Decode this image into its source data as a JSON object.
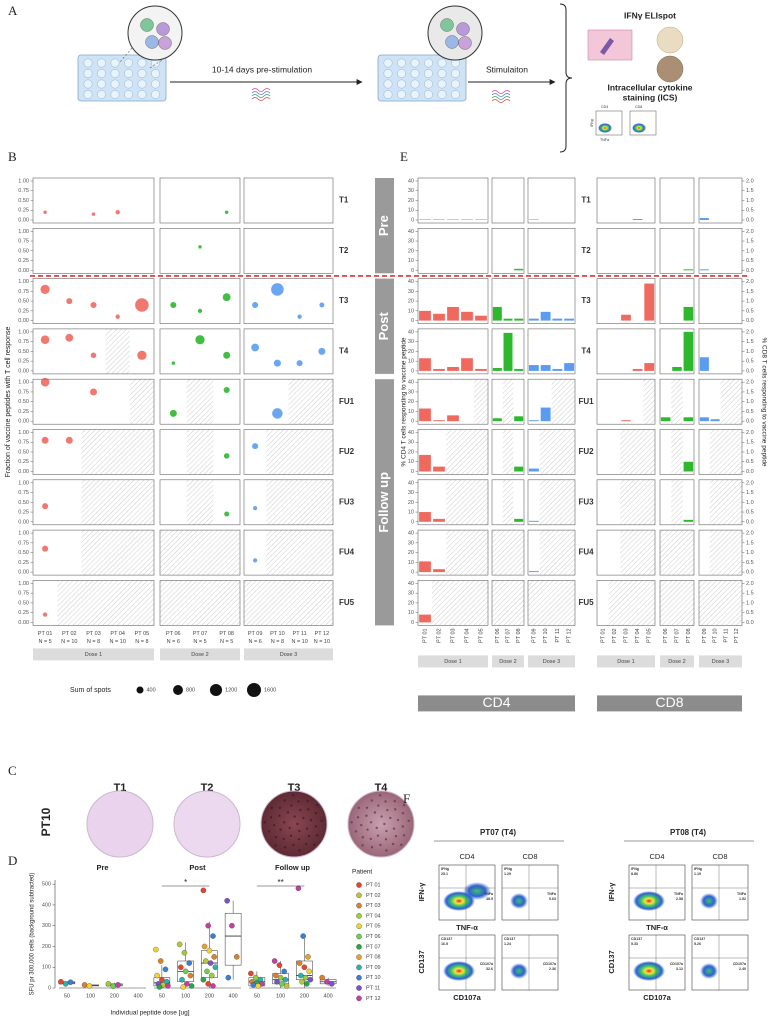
{
  "rows": [
    "T1",
    "T2",
    "T3",
    "T4",
    "FU1",
    "FU2",
    "FU3",
    "FU4",
    "FU5"
  ],
  "phases": [
    "Pre",
    "Post",
    "Follow up"
  ],
  "doses": [
    {
      "label": "Dose 1",
      "color": "#f0695f",
      "patients": [
        {
          "name": "PT 01",
          "n": "N = 5"
        },
        {
          "name": "PT 02",
          "n": "N = 10"
        },
        {
          "name": "PT 03",
          "n": "N = 8"
        },
        {
          "name": "PT 04",
          "n": "N = 10"
        },
        {
          "name": "PT 05",
          "n": "N = 8"
        }
      ]
    },
    {
      "label": "Dose 2",
      "color": "#2db82d",
      "patients": [
        {
          "name": "PT 06",
          "n": "N = 6"
        },
        {
          "name": "PT 07",
          "n": "N = 5"
        },
        {
          "name": "PT 08",
          "n": "N = 5"
        }
      ]
    },
    {
      "label": "Dose 3",
      "color": "#5b9cf2",
      "patients": [
        {
          "name": "PT 09",
          "n": "N = 6"
        },
        {
          "name": "PT 10",
          "n": "N = 8"
        },
        {
          "name": "PT 11",
          "n": "N = 10"
        },
        {
          "name": "PT 12",
          "n": "N = 10"
        }
      ]
    }
  ],
  "panel_a": {
    "letter": "A",
    "step1": "10-14 days pre-stimulation",
    "step2": "Stimulaiton",
    "readout1": "IFNγ ELIspot",
    "readout2": [
      "Intracellular cytokine",
      "staining (ICS)"
    ],
    "ics_labels": [
      "CD4",
      "CD8",
      "IFNg",
      "TNFa"
    ]
  },
  "panel_b": {
    "letter": "B",
    "ylabel": "Fraction of vaccine peptides with T cell response",
    "ylim": [
      0,
      1
    ],
    "yticks": [
      {
        "value": 0,
        "label": "0.00"
      },
      {
        "value": 0.25,
        "label": "0.25"
      },
      {
        "value": 0.5,
        "label": "0.50"
      },
      {
        "value": 0.75,
        "label": "0.75"
      },
      {
        "value": 1,
        "label": "1.00"
      }
    ],
    "fraction": [
      [
        0.2,
        0,
        0.15,
        0.2,
        0,
        0,
        0,
        0.2,
        0,
        0,
        0,
        0
      ],
      [
        0,
        0,
        0,
        0,
        0,
        0,
        0.6,
        0,
        0,
        0,
        0,
        0
      ],
      [
        0.8,
        0.5,
        0.4,
        0.1,
        0.4,
        0.4,
        0.25,
        0.6,
        0.4,
        0.8,
        0.1,
        0.4
      ],
      [
        0.8,
        0.85,
        0.4,
        null,
        0.4,
        0.2,
        0.8,
        0.4,
        0.6,
        0.2,
        0.2,
        0.5
      ],
      [
        1,
        0,
        0.75,
        0,
        null,
        0.2,
        null,
        0.8,
        0,
        0.2,
        null,
        null
      ],
      [
        0.8,
        0.8,
        null,
        null,
        null,
        0,
        null,
        0.4,
        0.65,
        null,
        null,
        null
      ],
      [
        0.4,
        0,
        null,
        null,
        null,
        0,
        null,
        0.2,
        0.35,
        null,
        null,
        null
      ],
      [
        0.6,
        0,
        null,
        null,
        null,
        null,
        null,
        null,
        0.3,
        null,
        null,
        null
      ],
      [
        0.2,
        null,
        null,
        null,
        null,
        null,
        null,
        null,
        null,
        null,
        null,
        null
      ]
    ],
    "spots": [
      [
        100,
        0,
        100,
        150,
        0,
        0,
        0,
        100,
        0,
        0,
        0,
        0
      ],
      [
        0,
        0,
        0,
        0,
        0,
        0,
        100,
        0,
        0,
        0,
        0,
        0
      ],
      [
        700,
        300,
        300,
        150,
        1500,
        300,
        150,
        500,
        300,
        1300,
        150,
        200
      ],
      [
        600,
        500,
        250,
        null,
        700,
        100,
        700,
        400,
        500,
        400,
        300,
        400
      ],
      [
        600,
        0,
        400,
        0,
        null,
        400,
        null,
        300,
        0,
        900,
        null,
        null
      ],
      [
        400,
        400,
        null,
        null,
        null,
        0,
        null,
        250,
        300,
        null,
        null,
        null
      ],
      [
        300,
        0,
        null,
        null,
        null,
        0,
        null,
        200,
        150,
        null,
        null,
        null
      ],
      [
        300,
        0,
        null,
        null,
        null,
        null,
        null,
        null,
        150,
        null,
        null,
        null
      ],
      [
        150,
        null,
        null,
        null,
        null,
        null,
        null,
        null,
        null,
        null,
        null,
        null
      ]
    ],
    "legend_title": "Sum of spots",
    "legend_sizes": [
      400,
      800,
      1200,
      1600
    ]
  },
  "panel_e": {
    "letter": "E",
    "ylabel": "% CD4 T cells responding to vaccine peptide",
    "y2label": "% CD8 T cells responding to vaccine peptide",
    "ylim": [
      0,
      40
    ],
    "yticks": [
      0,
      10,
      20,
      30,
      40
    ],
    "y2lim": [
      0,
      2
    ],
    "y2ticks": [
      {
        "value": 0,
        "label": "0.0"
      },
      0.5,
      {
        "value": 1,
        "label": "1.0"
      },
      1.5,
      {
        "value": 2,
        "label": "2.0"
      }
    ],
    "cd4_title": "CD4",
    "cd8_title": "CD8",
    "cd4": [
      [
        0.5,
        0.5,
        0.5,
        0.5,
        0.5,
        0,
        0,
        0,
        0.5,
        0,
        0,
        0
      ],
      [
        0,
        0,
        0,
        0,
        0,
        0,
        0,
        1.5,
        0,
        0,
        0,
        0
      ],
      [
        10,
        7,
        14,
        9,
        5,
        14,
        2,
        2,
        2,
        9,
        2,
        2
      ],
      [
        13,
        2,
        4,
        13,
        2,
        3,
        39,
        2,
        6,
        6,
        2,
        8
      ],
      [
        13,
        1,
        6,
        0,
        null,
        3,
        null,
        5,
        1,
        14,
        null,
        null
      ],
      [
        17,
        5,
        null,
        null,
        null,
        0,
        null,
        5,
        3,
        null,
        null,
        null
      ],
      [
        10,
        3,
        null,
        null,
        null,
        0,
        null,
        3,
        1,
        null,
        null,
        null
      ],
      [
        11,
        3,
        null,
        null,
        null,
        null,
        null,
        null,
        1,
        null,
        null,
        null
      ],
      [
        8,
        null,
        null,
        null,
        null,
        null,
        null,
        null,
        null,
        null,
        null,
        null
      ]
    ],
    "cd8": [
      [
        0,
        0,
        0,
        0.05,
        0,
        0,
        0,
        0,
        0.1,
        0,
        0,
        0
      ],
      [
        0,
        0,
        0,
        0,
        0,
        0,
        0,
        0.05,
        0.05,
        0,
        0,
        0
      ],
      [
        0,
        0,
        0.3,
        0,
        1.9,
        0,
        0,
        0.7,
        0,
        0,
        0,
        0
      ],
      [
        0,
        0,
        0,
        0.1,
        0.4,
        0,
        0.2,
        2,
        0.7,
        0,
        0,
        0
      ],
      [
        0,
        0,
        0.05,
        0,
        null,
        0.2,
        null,
        0.2,
        0.2,
        0.1,
        null,
        null
      ],
      [
        0,
        0,
        null,
        null,
        null,
        0,
        null,
        0.5,
        0,
        null,
        null,
        null
      ],
      [
        0,
        0,
        null,
        null,
        null,
        0,
        null,
        0.1,
        0,
        null,
        null,
        null
      ],
      [
        0,
        0,
        null,
        null,
        null,
        null,
        null,
        null,
        0,
        null,
        null,
        null
      ],
      [
        0,
        null,
        null,
        null,
        null,
        null,
        null,
        null,
        null,
        null,
        null,
        null
      ]
    ]
  },
  "panel_c": {
    "letter": "C",
    "sample": "PT10",
    "labels": [
      "T1",
      "T2",
      "T3",
      "T4"
    ]
  },
  "panel_d": {
    "letter": "D",
    "ylabel": "SFU pr 300,000 cells (background subtracted)",
    "xlabel": "Individual peptide dose [ug]",
    "ylim": [
      0,
      520
    ],
    "yticks": [
      0,
      100,
      200,
      300,
      400,
      500
    ],
    "categories": [
      "50",
      "100",
      "200",
      "400"
    ],
    "groups": [
      {
        "title": "Pre"
      },
      {
        "title": "Post",
        "significance": "*"
      },
      {
        "title": "Follow up",
        "significance": "**"
      }
    ],
    "cells": [
      {
        "box": [
          15,
          20,
          25,
          30,
          32
        ],
        "values": [
          30,
          20,
          28
        ],
        "colors": [
          "#e6452e",
          "#2ab3a6",
          "#3a7fd5"
        ]
      },
      {
        "box": [
          8,
          10,
          12,
          15,
          18
        ],
        "values": [
          15,
          10
        ],
        "colors": [
          "#d9822b",
          "#f2d230"
        ]
      },
      {
        "box": [
          5,
          10,
          15,
          20,
          25
        ],
        "values": [
          20,
          8,
          15
        ],
        "colors": [
          "#9ccc3c",
          "#6ccf4f",
          "#c43fa3"
        ]
      },
      {
        "box": null,
        "values": [],
        "colors": []
      },
      {
        "box": [
          0,
          10,
          25,
          50,
          110
        ],
        "values": [
          185,
          130,
          90,
          60,
          40,
          30,
          20,
          15,
          10,
          5
        ],
        "colors": [
          "#f2d230",
          "#d9822b",
          "#3a7fd5",
          "#f2d230",
          "#e6452e",
          "#2ab3a6",
          "#7b52c9",
          "#b7c73a",
          "#c43fa3",
          "#27a745"
        ]
      },
      {
        "box": [
          0,
          30,
          80,
          130,
          220
        ],
        "values": [
          210,
          170,
          120,
          100,
          80,
          60,
          40,
          20,
          10,
          5
        ],
        "colors": [
          "#b7c73a",
          "#9ccc3c",
          "#3a7fd5",
          "#e6452e",
          "#6ccf4f",
          "#d9822b",
          "#2ab3a6",
          "#c43fa3",
          "#27a745",
          "#f2d230"
        ]
      },
      {
        "box": [
          0,
          50,
          120,
          180,
          320
        ],
        "values": [
          470,
          300,
          250,
          200,
          180,
          150,
          130,
          120,
          100,
          80,
          60,
          40,
          20,
          10
        ],
        "colors": [
          "#e6452e",
          "#c43fa3",
          "#3a7fd5",
          "#e8a030",
          "#f2d230",
          "#d9822b",
          "#b7c73a",
          "#7b52c9",
          "#2ab3a6",
          "#6ccf4f",
          "#9ccc3c",
          "#27a745",
          "#e6452e",
          "#c43fa3"
        ]
      },
      {
        "box": [
          40,
          110,
          250,
          360,
          420
        ],
        "values": [
          420,
          300,
          150,
          50
        ],
        "colors": [
          "#7b52c9",
          "#c43fa3",
          "#d9822b",
          "#3a7fd5"
        ]
      },
      {
        "box": [
          0,
          10,
          30,
          50,
          80
        ],
        "values": [
          70,
          50,
          40,
          30,
          25,
          20,
          15,
          10
        ],
        "colors": [
          "#e6452e",
          "#9ccc3c",
          "#2ab3a6",
          "#d9822b",
          "#27a745",
          "#c43fa3",
          "#3a7fd5",
          "#f2d230"
        ]
      },
      {
        "box": [
          0,
          20,
          40,
          70,
          130
        ],
        "values": [
          130,
          110,
          80,
          60,
          50,
          40,
          30,
          20,
          10
        ],
        "colors": [
          "#c43fa3",
          "#e6452e",
          "#3a7fd5",
          "#d9822b",
          "#9ccc3c",
          "#2ab3a6",
          "#7b52c9",
          "#6ccf4f",
          "#b7c73a"
        ]
      },
      {
        "box": [
          0,
          40,
          60,
          130,
          250
        ],
        "values": [
          480,
          250,
          150,
          120,
          100,
          80,
          60,
          50,
          40,
          30,
          20
        ],
        "colors": [
          "#c43fa3",
          "#3a7fd5",
          "#e8a030",
          "#d9822b",
          "#e6452e",
          "#f2d230",
          "#2ab3a6",
          "#9ccc3c",
          "#7b52c9",
          "#b7c73a",
          "#27a745"
        ]
      },
      {
        "box": [
          10,
          20,
          30,
          40,
          50
        ],
        "values": [
          50,
          30,
          20
        ],
        "colors": [
          "#d9822b",
          "#c43fa3",
          "#7b52c9"
        ]
      }
    ],
    "legend_title": "Patient",
    "patients": [
      {
        "name": "PT 01",
        "color": "#e6452e"
      },
      {
        "name": "PT 02",
        "color": "#b7c73a"
      },
      {
        "name": "PT 03",
        "color": "#d9822b"
      },
      {
        "name": "PT 04",
        "color": "#9ccc3c"
      },
      {
        "name": "PT 05",
        "color": "#f2d230"
      },
      {
        "name": "PT 06",
        "color": "#6ccf4f"
      },
      {
        "name": "PT 07",
        "color": "#27a745"
      },
      {
        "name": "PT 08",
        "color": "#e8a030"
      },
      {
        "name": "PT 09",
        "color": "#2ab3a6"
      },
      {
        "name": "PT 10",
        "color": "#3a7fd5"
      },
      {
        "name": "PT 11",
        "color": "#7b52c9"
      },
      {
        "name": "PT 12",
        "color": "#c43fa3"
      }
    ]
  },
  "panel_f": {
    "letter": "F",
    "samples": [
      {
        "title": "PT07 (T4)",
        "subsets": [
          "CD4",
          "CD8"
        ],
        "rows": [
          {
            "ylabel": "IFN-γ",
            "xlabel": "TNF-α",
            "gates": [
              [
                {
                  "label": "IFNg",
                  "value": "25.1"
                },
                {
                  "label": "TNFa",
                  "value": "48.9"
                }
              ],
              [
                {
                  "label": "IFNg",
                  "value": "1.29"
                },
                {
                  "label": "TNFa",
                  "value": "0.63"
                }
              ]
            ]
          },
          {
            "ylabel": "CD137",
            "xlabel": "CD107a",
            "gates": [
              [
                {
                  "label": "CD137",
                  "value": "16.5"
                },
                {
                  "label": "CD107a",
                  "value": "32.6"
                }
              ],
              [
                {
                  "label": "CD137",
                  "value": "1.24"
                },
                {
                  "label": "CD107a",
                  "value": "2.36"
                }
              ]
            ]
          }
        ]
      },
      {
        "title": "PT08 (T4)",
        "subsets": [
          "CD4",
          "CD8"
        ],
        "rows": [
          {
            "ylabel": "IFN-γ",
            "xlabel": "TNF-α",
            "gates": [
              [
                {
                  "label": "IFNg",
                  "value": "8.86"
                },
                {
                  "label": "TNFa",
                  "value": "2.58"
                }
              ],
              [
                {
                  "label": "IFNg",
                  "value": "1.19"
                },
                {
                  "label": "TNFa",
                  "value": "1.52"
                }
              ]
            ]
          },
          {
            "ylabel": "CD137",
            "xlabel": "CD107a",
            "gates": [
              [
                {
                  "label": "CD137",
                  "value": "5.33"
                },
                {
                  "label": "CD107a",
                  "value": "3.12"
                }
              ],
              [
                {
                  "label": "CD137",
                  "value": "5.26"
                },
                {
                  "label": "CD107a",
                  "value": "2.40"
                }
              ]
            ]
          }
        ]
      }
    ]
  }
}
